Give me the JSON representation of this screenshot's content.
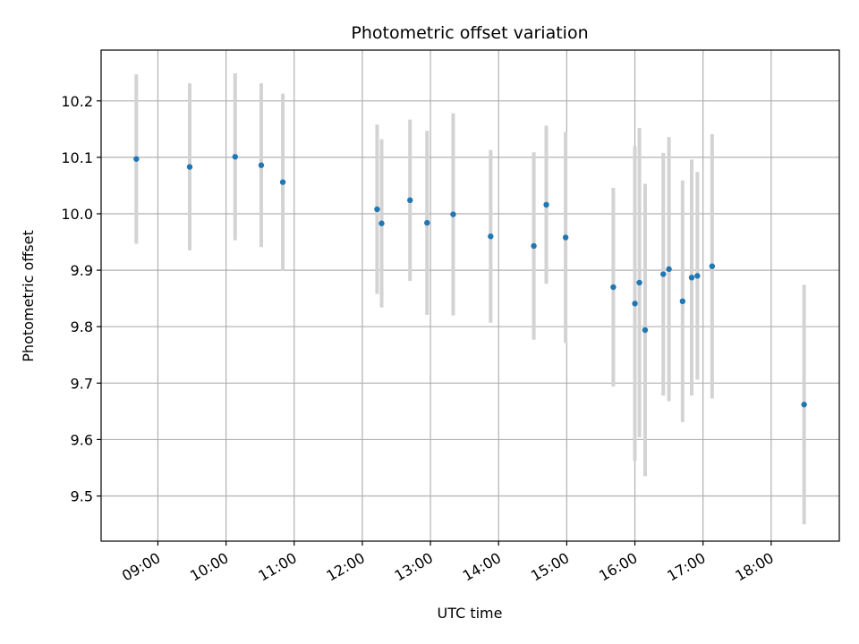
{
  "chart_data": {
    "type": "scatter",
    "title": "Photometric offset variation",
    "xlabel": "UTC time",
    "ylabel": "Photometric offset",
    "x_ticks": [
      "09:00",
      "10:00",
      "11:00",
      "12:00",
      "13:00",
      "14:00",
      "15:00",
      "16:00",
      "17:00",
      "18:00"
    ],
    "y_ticks": [
      "9.5",
      "9.6",
      "9.7",
      "9.8",
      "9.9",
      "10.0",
      "10.1",
      "10.2"
    ],
    "xlim": [
      "08:10",
      "19:00"
    ],
    "ylim": [
      9.42,
      10.29
    ],
    "grid": true,
    "point_color": "#1f77b4",
    "errorbar_color": "#d3d3d3",
    "points": [
      {
        "x": "08:41",
        "y": 10.097,
        "err": 0.15
      },
      {
        "x": "09:28",
        "y": 10.083,
        "err": 0.148
      },
      {
        "x": "10:08",
        "y": 10.101,
        "err": 0.148
      },
      {
        "x": "10:31",
        "y": 10.086,
        "err": 0.145
      },
      {
        "x": "10:50",
        "y": 10.056,
        "err": 0.157
      },
      {
        "x": "12:13",
        "y": 10.008,
        "err": 0.15
      },
      {
        "x": "12:17",
        "y": 9.983,
        "err": 0.149
      },
      {
        "x": "12:42",
        "y": 10.024,
        "err": 0.143
      },
      {
        "x": "12:57",
        "y": 9.984,
        "err": 0.163
      },
      {
        "x": "13:20",
        "y": 9.999,
        "err": 0.179
      },
      {
        "x": "13:53",
        "y": 9.96,
        "err": 0.153
      },
      {
        "x": "14:31",
        "y": 9.943,
        "err": 0.166
      },
      {
        "x": "14:42",
        "y": 10.016,
        "err": 0.14
      },
      {
        "x": "14:59",
        "y": 9.958,
        "err": 0.187
      },
      {
        "x": "15:41",
        "y": 9.87,
        "err": 0.176
      },
      {
        "x": "16:00",
        "y": 9.841,
        "err": 0.279
      },
      {
        "x": "16:04",
        "y": 9.878,
        "err": 0.274
      },
      {
        "x": "16:09",
        "y": 9.794,
        "err": 0.259
      },
      {
        "x": "16:25",
        "y": 9.893,
        "err": 0.215
      },
      {
        "x": "16:30",
        "y": 9.902,
        "err": 0.234
      },
      {
        "x": "16:42",
        "y": 9.845,
        "err": 0.214
      },
      {
        "x": "16:50",
        "y": 9.887,
        "err": 0.209
      },
      {
        "x": "16:55",
        "y": 9.89,
        "err": 0.184
      },
      {
        "x": "17:08",
        "y": 9.907,
        "err": 0.234
      },
      {
        "x": "18:29",
        "y": 9.662,
        "err": 0.212
      }
    ]
  }
}
